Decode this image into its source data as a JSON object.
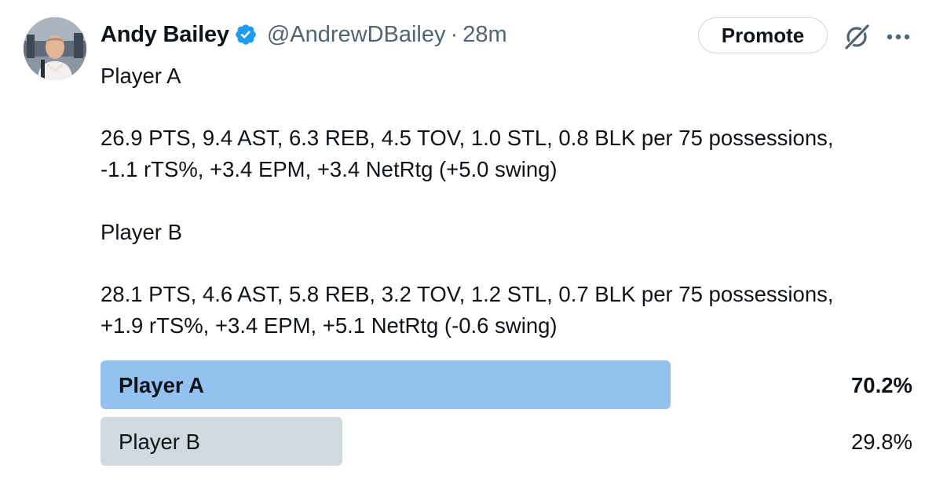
{
  "author": {
    "display_name": "Andy Bailey",
    "handle": "@AndrewDBailey",
    "separator": "·",
    "time": "28m",
    "verified": true,
    "verified_color": "#1d9bf0"
  },
  "actions": {
    "promote_label": "Promote",
    "grok_icon": "grok-icon",
    "more_icon": "more-icon"
  },
  "tweet": {
    "lines": [
      "Player A",
      "26.9 PTS, 9.4 AST, 6.3 REB, 4.5 TOV, 1.0 STL, 0.8 BLK per 75 possessions,",
      "-1.1 rTS%, +3.4 EPM, +3.4 NetRtg (+5.0 swing)",
      "Player B",
      "28.1 PTS, 4.6 AST, 5.8 REB, 3.2 TOV, 1.2 STL, 0.7 BLK per 75 possessions,",
      "+1.9 rTS%, +3.4 EPM, +5.1 NetRtg (-0.6 swing)"
    ]
  },
  "poll": {
    "options": [
      {
        "label": "Player A",
        "percent_text": "70.2%",
        "percent": 70.2,
        "winner": true,
        "bar_color": "#93c2f0"
      },
      {
        "label": "Player B",
        "percent_text": "29.8%",
        "percent": 29.8,
        "winner": false,
        "bar_color": "#cfd9de"
      }
    ]
  }
}
